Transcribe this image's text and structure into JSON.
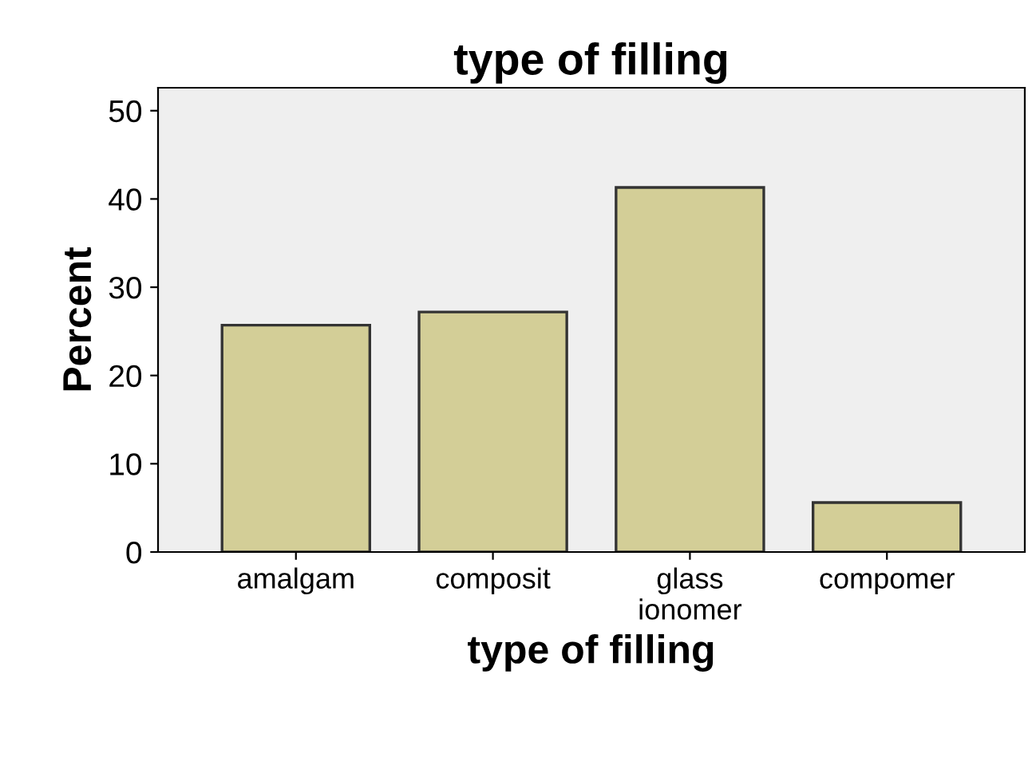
{
  "chart_data": {
    "type": "bar",
    "title": "type of filling",
    "xlabel": "type of filling",
    "ylabel": "Percent",
    "categories": [
      "amalgam",
      "composit",
      "glass\nionomer",
      "compomer"
    ],
    "values": [
      25.7,
      27.2,
      41.3,
      5.6
    ],
    "color": "#d3ce97",
    "ylim": [
      0,
      52.6
    ],
    "yticks": [
      0,
      10,
      20,
      30,
      40,
      50
    ],
    "grid": false,
    "legend": false
  }
}
